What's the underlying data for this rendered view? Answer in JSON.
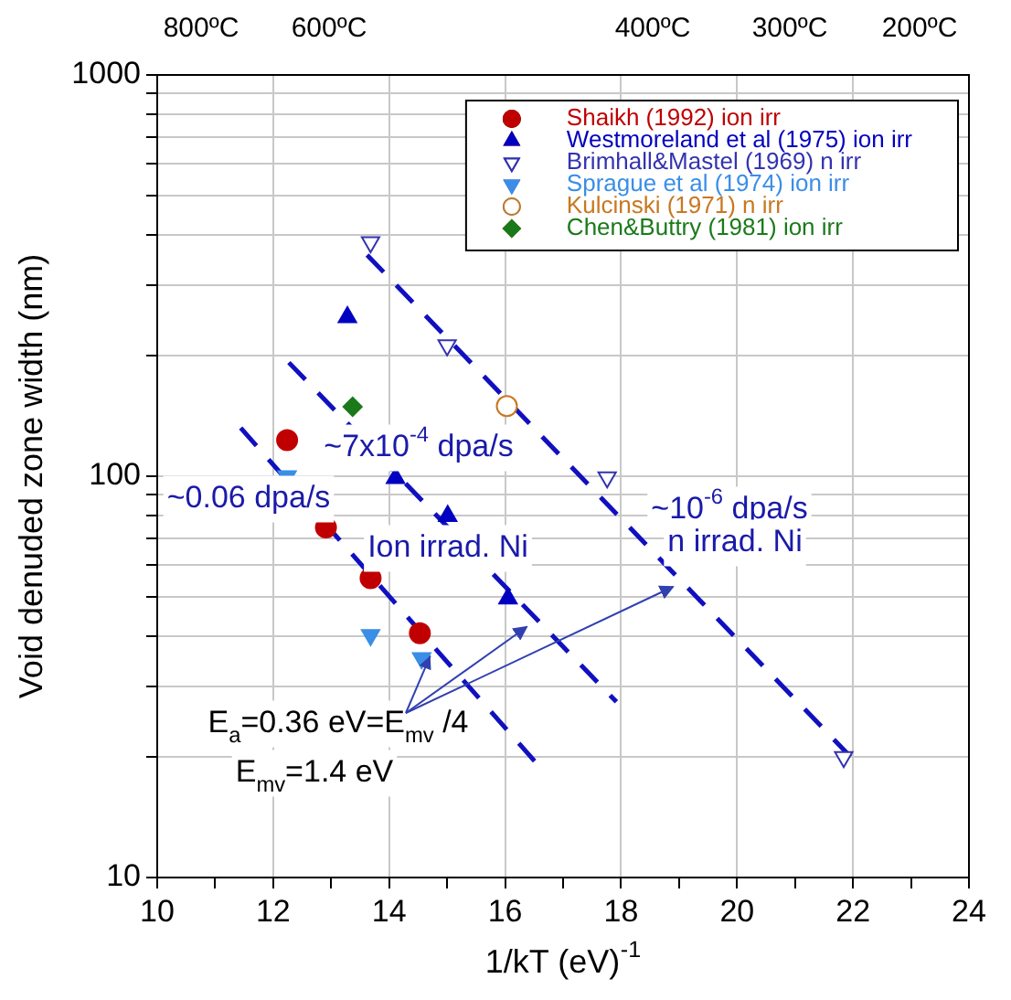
{
  "chart_data": {
    "type": "scatter",
    "xlabel": "1/kT (eV)$^{-1}$",
    "ylabel": "Void denuded zone width (nm)",
    "xlim": [
      10,
      24
    ],
    "xticks": [
      10,
      {
        "value": 11,
        "label": null
      },
      12,
      {
        "value": 13,
        "label": null
      },
      14,
      {
        "value": 15,
        "label": null
      },
      16,
      {
        "value": 17,
        "label": null
      },
      18,
      {
        "value": 19,
        "label": null
      },
      20,
      {
        "value": 21,
        "label": null
      },
      22,
      {
        "value": 23,
        "label": null
      },
      24
    ],
    "ylim": [
      10,
      1000
    ],
    "yticks": [
      10,
      {
        "value": 20,
        "label": null
      },
      {
        "value": 30,
        "label": null
      },
      {
        "value": 40,
        "label": null
      },
      {
        "value": 50,
        "label": null
      },
      {
        "value": 60,
        "label": null
      },
      {
        "value": 70,
        "label": null
      },
      {
        "value": 80,
        "label": null
      },
      {
        "value": 90,
        "label": null
      },
      100,
      {
        "value": 200,
        "label": null
      },
      {
        "value": 300,
        "label": null
      },
      {
        "value": 400,
        "label": null
      },
      {
        "value": 500,
        "label": null
      },
      {
        "value": 600,
        "label": null
      },
      {
        "value": 700,
        "label": null
      },
      {
        "value": 800,
        "label": null
      },
      {
        "value": 900,
        "label": null
      },
      1000
    ],
    "log": "y",
    "grid": true,
    "legend": "top right",
    "series": [
      {
        "name": "Shaikh (1992) ion irr",
        "color": "#c00000",
        "marker": "circle",
        "x": [
          12.24,
          12.91,
          13.68,
          14.53
        ],
        "values": [
          123,
          74.5,
          55.7,
          40.6
        ]
      },
      {
        "name": "Westmoreland et al (1975) ion irr",
        "color": "#0000c0",
        "marker": "triangle",
        "x": [
          13.28,
          14.11,
          15.01,
          16.05
        ],
        "values": [
          249,
          99,
          79.6,
          49.6
        ]
      },
      {
        "name": "Brimhall&Mastel (1969) n irr",
        "color": "#3333b0",
        "marker": "triangle-down-open",
        "x": [
          13.68,
          15.0,
          17.76,
          21.84
        ],
        "values": [
          383,
          212,
          99.3,
          19.95
        ]
      },
      {
        "name": "Sprague et al (1974) ion irr",
        "color": "#3a8ee6",
        "marker": "triangle-down",
        "x": [
          12.24,
          13.68,
          14.56
        ],
        "values": [
          100,
          40.2,
          35.2
        ]
      },
      {
        "name": "Kulcinski (1971) n irr",
        "color": "#c87820",
        "marker": "circle-open",
        "x": [
          16.03
        ],
        "values": [
          149.6
        ]
      },
      {
        "name": "Chen&Buttry (1981) ion irr",
        "color": "#1a7a1a",
        "marker": "diamond",
        "x": [
          13.37
        ],
        "values": [
          149
        ]
      },
      {
        "type": "line",
        "color": "#1010c0",
        "line_style": "dashed",
        "x": [
          11.44,
          16.62
        ],
        "values": [
          132,
          18.7
        ]
      },
      {
        "type": "line",
        "color": "#1010c0",
        "line_style": "dashed",
        "x": [
          12.27,
          17.92
        ],
        "values": [
          192,
          27.4
        ]
      },
      {
        "type": "line",
        "color": "#1010c0",
        "line_style": "dashed",
        "x": [
          13.62,
          22.03
        ],
        "values": [
          356,
          19.5
        ]
      }
    ],
    "annotations": [
      "800ºC",
      "600ºC",
      "400ºC",
      "300ºC",
      "200ºC",
      "~0.06 dpa/s",
      "~7x10$^{-4}$ dpa/s",
      "Ion irrad. Ni",
      "~10$^{-6}$ dpa/s",
      "n irrad. Ni",
      {
        "text": "E$_{a}$=0.36 eV=E$_{mv}$ /4",
        "x": 14.71,
        "y": 35.7
      },
      "E$_{mv}$=1.4 eV"
    ]
  }
}
